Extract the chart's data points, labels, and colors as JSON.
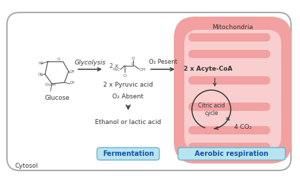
{
  "bg_color": "#ffffff",
  "mito_outer_color": "#f2a0a0",
  "mito_inner_color": "#f8cece",
  "mito_cristae_color": "#f2a0a0",
  "cytosol_label": "Cytosol",
  "mito_label": "Mitochondria",
  "glucose_label": "Glucose",
  "glycolysis_label": "Glycolysis",
  "pyruvic_label": "2 x Pyruvic acid",
  "o2_absent_label": "O₂ Absent",
  "ethanol_label": "Ethanol or lactic acid",
  "o2_present_label": "O₂ Pesent",
  "acetyl_label": "2 x Acyte-CoA",
  "citric_label": "Citric acid\ncycle",
  "co2_label": "4 CO₂",
  "fermentation_label": "Fermentation",
  "aerobic_label": "Aerobic respiration",
  "fermentation_bg": "#b8e4f0",
  "aerobic_bg": "#b8e4f0",
  "arrow_color": "#444444",
  "text_color": "#333333"
}
